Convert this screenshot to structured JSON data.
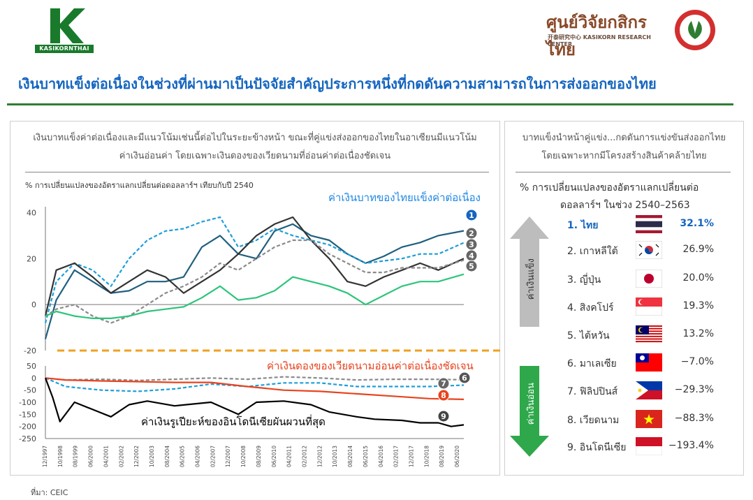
{
  "header": {
    "left_logo_text": "KASIKORNTHAI",
    "right_logo_thai": "ศูนย์วิจัยกสิกรไทย",
    "right_logo_en": "开泰研究中心  KASIKORN RESEARCH CENTER",
    "headline": "เงินบาทแข็งต่อเนื่องในช่วงที่ผ่านมาเป็นปัจจัยสำคัญประการหนึ่งที่กดดันความสามารถในการส่งออกของไทย",
    "colors": {
      "brand_green": "#2e7d32",
      "headline_blue": "#1565c0"
    }
  },
  "left_panel": {
    "subtitle_line1": "เงินบาทแข็งค่าต่อเนื่องและมีแนวโน้มเช่นนี้ต่อไปในระยะข้างหน้า ขณะที่คู่แข่งส่งออกของไทยในอาเซียนมีแนวโน้ม",
    "subtitle_line2": "ค่าเงินอ่อนค่า โดยเฉพาะเงินดองของเวียดนามที่อ่อนค่าต่อเนื่องชัดเจน",
    "axis_note": "% การเปลี่ยนแปลงของอัตราแลกเปลี่ยนต่อดอลลาร์ฯ  เทียบกับปี 2540",
    "annotation_top": "ค่าเงินบาทของไทยแข็งค่าต่อเนื่อง",
    "annotation_mid": "ค่าเงินดองของเวียดนามอ่อนค่าต่อเนื่องชัดเจน",
    "annotation_bottom": "ค่าเงินรูเปียะห์ของอินโดนีเซียผันผวนที่สุด"
  },
  "right_panel": {
    "subtitle_line1": "บาทแข็งนำหน้าคู่แข่ง...กดดันการแข่งขันส่งออกไทย",
    "subtitle_line2": "โดยเฉพาะหากมีโครงสร้างสินค้าคล้ายไทย",
    "metric_line1": "% การเปลี่ยนแปลงของอัตราแลกเปลี่ยนต่อ",
    "metric_line2": "ดอลลาร์ฯ  ในช่วง 2540–2563",
    "strong_label": "ค่าเงินแข็ง",
    "weak_label": "ค่าเงินอ่อน",
    "ranking": [
      {
        "label": "1. ไทย",
        "value": "32.1%",
        "flag": "thailand-flag"
      },
      {
        "label": "2. เกาหลีใต้",
        "value": "26.9%",
        "flag": "south-korea-flag"
      },
      {
        "label": "3. ญี่ปุ่น",
        "value": "20.0%",
        "flag": "japan-flag"
      },
      {
        "label": "4. สิงคโปร์",
        "value": "19.3%",
        "flag": "singapore-flag"
      },
      {
        "label": "5. ไต้หวัน",
        "value": "13.2%",
        "flag": "malaysia-flag"
      },
      {
        "label": "6. มาเลเซีย",
        "value": "−7.0%",
        "flag": "taiwan-flag"
      },
      {
        "label": "7. ฟิลิปปินส์",
        "value": "−29.3%",
        "flag": "philippines-flag"
      },
      {
        "label": "8. เวียดนาม",
        "value": "−88.3%",
        "flag": "vietnam-flag"
      },
      {
        "label": "9. อินโดนีเซีย",
        "value": "−193.4%",
        "flag": "indonesia-flag"
      }
    ]
  },
  "source": "ที่มา: CEIC",
  "chart_data": [
    {
      "type": "line",
      "panel": "upper",
      "ylim": [
        -20,
        45
      ],
      "yticks": [
        "40",
        "20",
        "0",
        "-20"
      ],
      "x_start": "1997-12",
      "x_end": "2020-12",
      "series": [
        {
          "id": "1",
          "color": "#1f5f7f",
          "dash": false,
          "x": [
            1997.9,
            1998.5,
            1999.5,
            2000.5,
            2001.5,
            2002.5,
            2003.5,
            2004.5,
            2005.5,
            2006.5,
            2007.5,
            2008.5,
            2009.5,
            2010.5,
            2011.5,
            2012.5,
            2013.5,
            2014.5,
            2015.5,
            2016.5,
            2017.5,
            2018.5,
            2019.5,
            2020.9
          ],
          "y": [
            -15,
            2,
            15,
            10,
            5,
            6,
            10,
            10,
            12,
            25,
            30,
            22,
            20,
            32,
            35,
            30,
            28,
            22,
            18,
            21,
            25,
            27,
            30,
            32.1
          ]
        },
        {
          "id": "2",
          "color": "#1f9ed8",
          "dash": true,
          "x": [
            1997.9,
            1998.5,
            1999.5,
            2000.5,
            2001.5,
            2002.5,
            2003.5,
            2004.5,
            2005.5,
            2006.5,
            2007.5,
            2008.5,
            2009.5,
            2010.5,
            2011.5,
            2012.5,
            2013.5,
            2014.5,
            2015.5,
            2016.5,
            2017.5,
            2018.5,
            2019.5,
            2020.9
          ],
          "y": [
            -8,
            10,
            18,
            15,
            8,
            20,
            28,
            32,
            33,
            36,
            38,
            25,
            28,
            33,
            30,
            28,
            26,
            22,
            18,
            19,
            20,
            22,
            22,
            26.9
          ]
        },
        {
          "id": "3",
          "color": "#333333",
          "dash": false,
          "x": [
            1997.9,
            1998.5,
            1999.5,
            2000.5,
            2001.5,
            2002.5,
            2003.5,
            2004.5,
            2005.5,
            2006.5,
            2007.5,
            2008.5,
            2009.5,
            2010.5,
            2011.5,
            2012.5,
            2013.5,
            2014.5,
            2015.5,
            2016.5,
            2017.5,
            2018.5,
            2019.5,
            2020.9
          ],
          "y": [
            -5,
            15,
            18,
            12,
            5,
            10,
            15,
            12,
            5,
            10,
            15,
            22,
            30,
            35,
            38,
            28,
            20,
            10,
            8,
            12,
            15,
            18,
            15,
            20.0
          ]
        },
        {
          "id": "4",
          "color": "#8a8a8a",
          "dash": true,
          "x": [
            1997.9,
            1998.5,
            1999.5,
            2000.5,
            2001.5,
            2002.5,
            2003.5,
            2004.5,
            2005.5,
            2006.5,
            2007.5,
            2008.5,
            2009.5,
            2010.5,
            2011.5,
            2012.5,
            2013.5,
            2014.5,
            2015.5,
            2016.5,
            2017.5,
            2018.5,
            2019.5,
            2020.9
          ],
          "y": [
            -5,
            -2,
            0,
            -5,
            -8,
            -5,
            0,
            5,
            8,
            12,
            18,
            15,
            20,
            25,
            28,
            28,
            22,
            18,
            14,
            14,
            16,
            16,
            16,
            19.3
          ]
        },
        {
          "id": "5",
          "color": "#2ec47a",
          "dash": false,
          "x": [
            1997.9,
            1998.5,
            1999.5,
            2000.5,
            2001.5,
            2002.5,
            2003.5,
            2004.5,
            2005.5,
            2006.5,
            2007.5,
            2008.5,
            2009.5,
            2010.5,
            2011.5,
            2012.5,
            2013.5,
            2014.5,
            2015.5,
            2016.5,
            2017.5,
            2018.5,
            2019.5,
            2020.9
          ],
          "y": [
            -5,
            -3,
            -5,
            -6,
            -6,
            -5,
            -3,
            -2,
            -1,
            3,
            8,
            2,
            3,
            6,
            12,
            10,
            8,
            5,
            0,
            4,
            8,
            10,
            10,
            13.2
          ]
        }
      ]
    },
    {
      "type": "line",
      "panel": "lower",
      "ylim": [
        -250,
        50
      ],
      "yticks": [
        "50",
        "0",
        "-50",
        "-100",
        "-150",
        "-200",
        "-250"
      ],
      "xticks": [
        "12/1997",
        "10/1998",
        "08/1999",
        "06/2000",
        "04/2001",
        "02/2002",
        "12/2002",
        "10/2003",
        "08/2004",
        "06/2005",
        "04/2006",
        "02/2007",
        "12/2007",
        "10/2008",
        "08/2009",
        "06/2010",
        "04/2011",
        "02/2012",
        "12/2012",
        "10/2013",
        "08/2014",
        "06/2015",
        "04/2016",
        "02/2017",
        "12/2017",
        "10/2018",
        "08/2019",
        "06/2020"
      ],
      "series": [
        {
          "id": "6",
          "color": "#8a8a8a",
          "dash": true,
          "x": [
            1997.9,
            1999,
            2001,
            2003,
            2005,
            2007,
            2009,
            2011,
            2013,
            2015,
            2017,
            2019,
            2020.9
          ],
          "y": [
            0,
            -8,
            -5,
            -10,
            -5,
            0,
            -5,
            5,
            0,
            -8,
            -5,
            -5,
            -7.0
          ]
        },
        {
          "id": "7",
          "color": "#1f9ed8",
          "dash": true,
          "x": [
            1997.9,
            1999,
            2001,
            2003,
            2005,
            2007,
            2009,
            2011,
            2013,
            2015,
            2017,
            2019,
            2020.9
          ],
          "y": [
            0,
            -35,
            -50,
            -55,
            -45,
            -25,
            -35,
            -20,
            -20,
            -35,
            -35,
            -35,
            -29.3
          ]
        },
        {
          "id": "8",
          "color": "#e8431e",
          "dash": false,
          "x": [
            1997.9,
            1999,
            2001,
            2003,
            2005,
            2007,
            2009,
            2011,
            2013,
            2015,
            2017,
            2019,
            2020.9
          ],
          "y": [
            0,
            -8,
            -12,
            -15,
            -18,
            -18,
            -35,
            -50,
            -55,
            -65,
            -75,
            -85,
            -88.3
          ]
        },
        {
          "id": "9",
          "color": "#000000",
          "dash": false,
          "x": [
            1997.9,
            1998.3,
            1998.7,
            1999.5,
            2000.5,
            2001.5,
            2002.5,
            2003.5,
            2005,
            2007,
            2008.5,
            2009.5,
            2011,
            2012.5,
            2013.5,
            2015,
            2016,
            2017.5,
            2018.5,
            2019.5,
            2020.2,
            2020.9
          ],
          "y": [
            0,
            -80,
            -180,
            -100,
            -130,
            -160,
            -110,
            -95,
            -115,
            -100,
            -150,
            -100,
            -95,
            -110,
            -140,
            -160,
            -170,
            -175,
            -185,
            -185,
            -200,
            -193.4
          ]
        }
      ]
    }
  ]
}
